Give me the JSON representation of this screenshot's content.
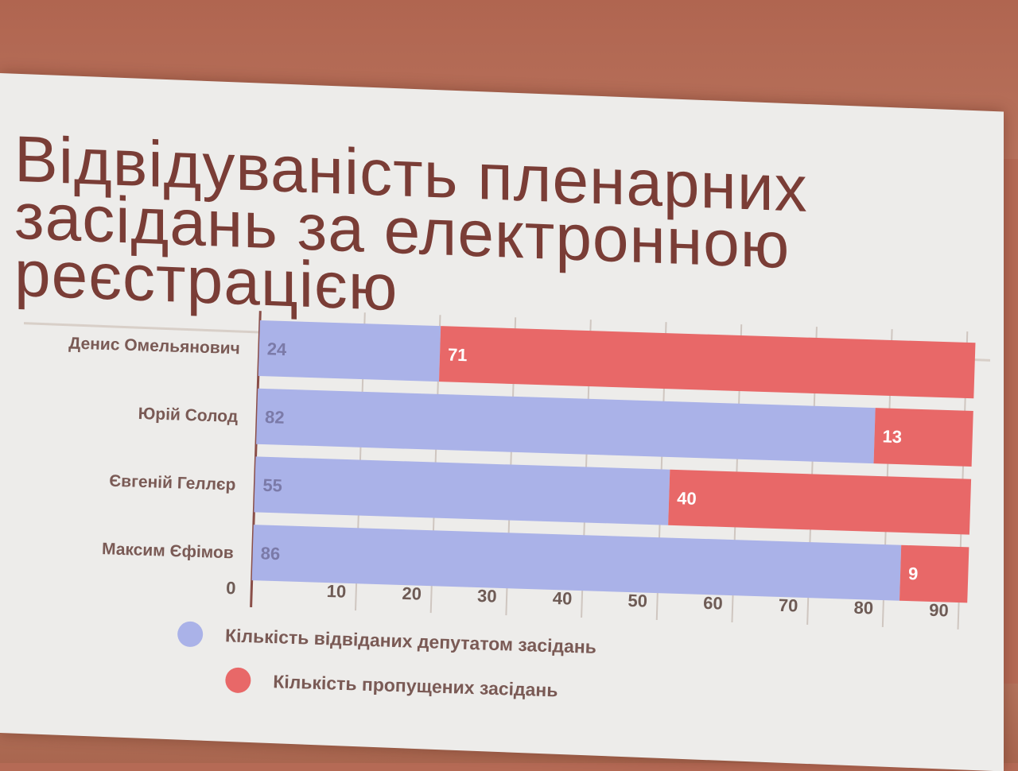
{
  "slide": {
    "title_lines": [
      "Відвідуваність пленарних",
      "засідань за електронною",
      "реєстрацією"
    ]
  },
  "chart_data": {
    "type": "bar",
    "orientation": "horizontal",
    "stacked": true,
    "title": "Відвідуваність пленарних засідань за електронною реєстрацією",
    "categories": [
      "Денис Омельянович",
      "Юрій Солод",
      "Євгеній Геллєр",
      "Максим Єфімов"
    ],
    "series": [
      {
        "name": "Кількість відвіданих депутатом засідань",
        "values": [
          24,
          82,
          55,
          86
        ],
        "color": "#aab2e8"
      },
      {
        "name": "Кількість пропущених засідань",
        "values": [
          71,
          13,
          40,
          9
        ],
        "color": "#e86868"
      }
    ],
    "x_ticks": [
      0,
      10,
      20,
      30,
      40,
      50,
      60,
      70,
      80,
      90
    ],
    "xlim": [
      0,
      95
    ],
    "grid": true,
    "legend_position": "bottom-left"
  },
  "colors": {
    "title": "#7a3d36",
    "attended": "#aab2e8",
    "missed": "#e86868",
    "slide_bg": "#edecea"
  }
}
